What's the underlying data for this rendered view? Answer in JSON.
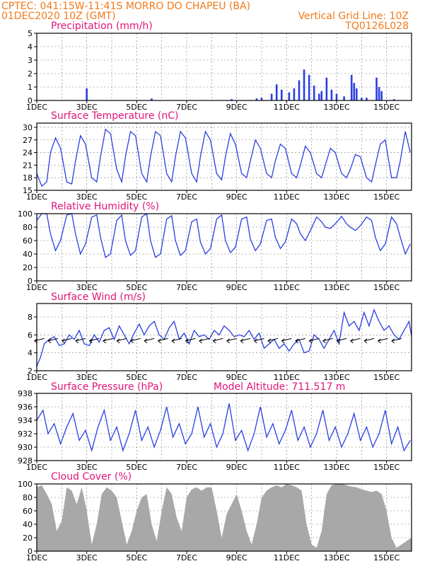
{
  "header": {
    "station": "CPTEC:  041:15W-11:41S  MORRO DO CHAPEU (BA)",
    "date": "01DEC2020 10Z (GMT)",
    "grid_note": "Vertical Grid Line: 10Z",
    "code": "TQ0126L028",
    "extra": "Model Altitude: 711.517 m"
  },
  "colors": {
    "header": "#f07a1a",
    "panel_title": "#e0147a",
    "line": "#2a3fe0",
    "bar": "#2a3fe0",
    "cloud": "#a8a8a8",
    "arrow": "#000000"
  },
  "chart_data": [
    {
      "type": "bar",
      "title": "Precipitation (mm/h)",
      "xticks": [
        "1DEC",
        "3DEC",
        "5DEC",
        "7DEC",
        "9DEC",
        "11DEC",
        "13DEC",
        "15DEC"
      ],
      "yticks": [
        0,
        1,
        2,
        3,
        4,
        5
      ],
      "ylim": [
        0,
        5
      ],
      "xlim": [
        0,
        15
      ],
      "grid": "dashed",
      "events": [
        {
          "x": 2.0,
          "y": 0.9
        },
        {
          "x": 4.6,
          "y": 0.15
        },
        {
          "x": 7.8,
          "y": 0.1
        },
        {
          "x": 8.8,
          "y": 0.15
        },
        {
          "x": 9.0,
          "y": 0.2
        },
        {
          "x": 9.4,
          "y": 0.5
        },
        {
          "x": 9.6,
          "y": 1.2
        },
        {
          "x": 9.8,
          "y": 0.8
        },
        {
          "x": 10.1,
          "y": 0.6
        },
        {
          "x": 10.3,
          "y": 0.9
        },
        {
          "x": 10.5,
          "y": 1.5
        },
        {
          "x": 10.7,
          "y": 2.3
        },
        {
          "x": 10.9,
          "y": 1.9
        },
        {
          "x": 11.1,
          "y": 1.1
        },
        {
          "x": 11.3,
          "y": 0.5
        },
        {
          "x": 11.4,
          "y": 0.7
        },
        {
          "x": 11.6,
          "y": 1.7
        },
        {
          "x": 11.8,
          "y": 0.8
        },
        {
          "x": 12.0,
          "y": 0.5
        },
        {
          "x": 12.3,
          "y": 0.3
        },
        {
          "x": 12.6,
          "y": 1.9
        },
        {
          "x": 12.7,
          "y": 1.3
        },
        {
          "x": 12.8,
          "y": 0.9
        },
        {
          "x": 13.0,
          "y": 0.2
        },
        {
          "x": 13.2,
          "y": 0.2
        },
        {
          "x": 13.6,
          "y": 1.7
        },
        {
          "x": 13.7,
          "y": 1.0
        },
        {
          "x": 13.8,
          "y": 0.7
        },
        {
          "x": 14.3,
          "y": 0.1
        }
      ]
    },
    {
      "type": "line",
      "title": "Surface Temperature (nC)",
      "xticks": [
        "1DEC",
        "3DEC",
        "5DEC",
        "7DEC",
        "9DEC",
        "11DEC",
        "13DEC",
        "15DEC"
      ],
      "yticks": [
        15,
        18,
        21,
        24,
        27,
        30
      ],
      "ylim": [
        15,
        31
      ],
      "xlim": [
        0,
        15
      ],
      "x": [
        0,
        0.2,
        0.4,
        0.55,
        0.75,
        0.95,
        1.2,
        1.4,
        1.55,
        1.75,
        1.95,
        2.2,
        2.4,
        2.55,
        2.75,
        2.95,
        3.2,
        3.4,
        3.55,
        3.75,
        3.95,
        4.2,
        4.4,
        4.55,
        4.75,
        4.95,
        5.2,
        5.4,
        5.55,
        5.75,
        5.95,
        6.2,
        6.4,
        6.55,
        6.75,
        6.95,
        7.2,
        7.4,
        7.55,
        7.75,
        7.95,
        8.2,
        8.4,
        8.55,
        8.75,
        8.95,
        9.2,
        9.4,
        9.55,
        9.75,
        9.95,
        10.2,
        10.4,
        10.55,
        10.75,
        10.95,
        11.2,
        11.4,
        11.55,
        11.75,
        11.95,
        12.2,
        12.4,
        12.55,
        12.75,
        12.95,
        13.2,
        13.4,
        13.55,
        13.75,
        13.95,
        14.2,
        14.4,
        14.55,
        14.75,
        14.95
      ],
      "values": [
        19,
        16,
        17,
        24,
        27.5,
        25,
        17,
        16.5,
        22,
        28,
        26,
        18,
        17,
        23,
        29.5,
        28.5,
        20,
        17,
        23,
        29,
        28,
        19,
        17,
        23,
        29,
        28,
        19,
        17,
        23,
        29,
        27.5,
        19,
        17,
        23,
        29,
        27,
        19,
        17.5,
        23,
        28.5,
        26,
        19,
        18,
        22,
        27,
        25,
        19,
        18,
        22,
        26,
        25,
        19,
        18,
        21,
        25.5,
        24,
        19,
        18,
        21,
        25,
        24,
        19,
        18,
        20,
        23.5,
        23,
        18,
        17,
        21,
        26,
        27,
        18,
        18,
        22,
        29,
        24
      ]
    },
    {
      "type": "line",
      "title": "Relative Humidity (%)",
      "xticks": [
        "1DEC",
        "3DEC",
        "5DEC",
        "7DEC",
        "9DEC",
        "11DEC",
        "13DEC",
        "15DEC"
      ],
      "yticks": [
        0,
        20,
        40,
        60,
        80,
        100
      ],
      "ylim": [
        0,
        100
      ],
      "xlim": [
        0,
        15
      ],
      "x": [
        0,
        0.2,
        0.4,
        0.55,
        0.75,
        0.95,
        1.2,
        1.4,
        1.55,
        1.75,
        1.95,
        2.2,
        2.4,
        2.55,
        2.75,
        2.95,
        3.2,
        3.4,
        3.55,
        3.75,
        3.95,
        4.2,
        4.4,
        4.55,
        4.75,
        4.95,
        5.2,
        5.4,
        5.55,
        5.75,
        5.95,
        6.2,
        6.4,
        6.55,
        6.75,
        6.95,
        7.2,
        7.4,
        7.55,
        7.75,
        7.95,
        8.2,
        8.4,
        8.55,
        8.75,
        8.95,
        9.2,
        9.4,
        9.55,
        9.75,
        9.95,
        10.2,
        10.4,
        10.55,
        10.75,
        10.95,
        11.2,
        11.4,
        11.55,
        11.75,
        11.95,
        12.2,
        12.4,
        12.55,
        12.75,
        12.95,
        13.2,
        13.4,
        13.55,
        13.75,
        13.95,
        14.2,
        14.4,
        14.55,
        14.75,
        14.95
      ],
      "values": [
        90,
        100,
        100,
        70,
        45,
        60,
        98,
        100,
        70,
        40,
        55,
        95,
        98,
        65,
        35,
        40,
        90,
        98,
        60,
        38,
        45,
        95,
        100,
        60,
        35,
        40,
        92,
        97,
        60,
        38,
        45,
        88,
        92,
        58,
        40,
        48,
        92,
        98,
        60,
        42,
        50,
        92,
        95,
        62,
        45,
        55,
        90,
        92,
        65,
        48,
        58,
        92,
        85,
        70,
        60,
        75,
        95,
        88,
        80,
        78,
        85,
        96,
        85,
        80,
        75,
        82,
        95,
        90,
        65,
        45,
        55,
        95,
        85,
        65,
        40,
        55
      ]
    },
    {
      "type": "line",
      "title": "Surface Wind (m/s)",
      "xticks": [
        "1DEC",
        "3DEC",
        "5DEC",
        "7DEC",
        "9DEC",
        "11DEC",
        "13DEC",
        "15DEC"
      ],
      "yticks": [
        2,
        4,
        6,
        8
      ],
      "ylim": [
        2,
        9.5
      ],
      "xlim": [
        0,
        15
      ],
      "x": [
        0,
        0.15,
        0.3,
        0.5,
        0.7,
        0.9,
        1.1,
        1.3,
        1.5,
        1.7,
        1.9,
        2.1,
        2.3,
        2.5,
        2.7,
        2.9,
        3.1,
        3.3,
        3.5,
        3.7,
        3.9,
        4.1,
        4.3,
        4.5,
        4.7,
        4.9,
        5.1,
        5.3,
        5.5,
        5.7,
        5.9,
        6.1,
        6.3,
        6.5,
        6.7,
        6.9,
        7.1,
        7.3,
        7.5,
        7.7,
        7.9,
        8.1,
        8.3,
        8.5,
        8.7,
        8.9,
        9.1,
        9.3,
        9.5,
        9.7,
        9.9,
        10.1,
        10.3,
        10.5,
        10.7,
        10.9,
        11.1,
        11.3,
        11.5,
        11.7,
        11.9,
        12.1,
        12.3,
        12.5,
        12.7,
        12.9,
        13.1,
        13.3,
        13.5,
        13.7,
        13.9,
        14.1,
        14.3,
        14.5,
        14.7,
        14.9,
        15.0
      ],
      "values": [
        2.5,
        3.5,
        5.0,
        5.5,
        5.8,
        4.8,
        5.0,
        6.0,
        5.5,
        6.5,
        5.0,
        4.8,
        6.0,
        5.2,
        6.5,
        6.8,
        5.5,
        7.0,
        6.0,
        5.0,
        6.2,
        7.2,
        6.0,
        7.0,
        7.5,
        6.0,
        5.5,
        6.8,
        7.5,
        5.5,
        6.2,
        5.0,
        6.5,
        5.8,
        6.0,
        5.5,
        6.5,
        6.0,
        7.0,
        6.5,
        5.8,
        6.0,
        5.8,
        6.5,
        5.5,
        6.2,
        4.5,
        5.0,
        5.5,
        4.5,
        5.0,
        4.2,
        5.0,
        5.5,
        4.0,
        4.2,
        6.0,
        5.5,
        4.5,
        5.5,
        6.5,
        5.0,
        8.5,
        7.0,
        7.5,
        6.5,
        8.5,
        7.0,
        8.8,
        7.5,
        6.5,
        7.0,
        6.0,
        5.5,
        6.5,
        7.5,
        5.8
      ]
    },
    {
      "type": "line",
      "title": "Surface Pressure (hPa)",
      "xticks": [
        "1DEC",
        "3DEC",
        "5DEC",
        "7DEC",
        "9DEC",
        "11DEC",
        "13DEC",
        "15DEC"
      ],
      "yticks": [
        928,
        930,
        932,
        934,
        936,
        938
      ],
      "ylim": [
        928,
        938
      ],
      "xlim": [
        0,
        15
      ],
      "x": [
        0,
        0.25,
        0.45,
        0.7,
        0.95,
        1.2,
        1.45,
        1.7,
        1.95,
        2.2,
        2.45,
        2.7,
        2.95,
        3.2,
        3.45,
        3.7,
        3.95,
        4.2,
        4.45,
        4.7,
        4.95,
        5.2,
        5.45,
        5.7,
        5.95,
        6.2,
        6.45,
        6.7,
        6.95,
        7.2,
        7.45,
        7.7,
        7.95,
        8.2,
        8.45,
        8.7,
        8.95,
        9.2,
        9.45,
        9.7,
        9.95,
        10.2,
        10.45,
        10.7,
        10.95,
        11.2,
        11.45,
        11.7,
        11.95,
        12.2,
        12.45,
        12.7,
        12.95,
        13.2,
        13.45,
        13.7,
        13.95,
        14.2,
        14.45,
        14.7,
        14.95
      ],
      "values": [
        934,
        935.5,
        932,
        933.5,
        930.5,
        933,
        935,
        931,
        932.5,
        929.5,
        933,
        935.5,
        931,
        933,
        929.5,
        932,
        935.5,
        931,
        933,
        930,
        932.5,
        936,
        931.5,
        933.5,
        930.5,
        932,
        936,
        931.5,
        933.5,
        930,
        932,
        936.5,
        931,
        932.5,
        929.5,
        932,
        936,
        931.5,
        933.5,
        930.5,
        932.5,
        935.5,
        931,
        933,
        930,
        932,
        935.5,
        931,
        933,
        930,
        932,
        935,
        931,
        933,
        930,
        932,
        935.5,
        930.5,
        933,
        929.5,
        931
      ]
    },
    {
      "type": "area",
      "title": "Cloud Cover (%)",
      "xticks": [
        "1DEC",
        "3DEC",
        "5DEC",
        "7DEC",
        "9DEC",
        "11DEC",
        "13DEC",
        "15DEC"
      ],
      "yticks": [
        0,
        20,
        40,
        60,
        80,
        100
      ],
      "ylim": [
        0,
        100
      ],
      "xlim": [
        0,
        15
      ],
      "x": [
        0,
        0.2,
        0.4,
        0.6,
        0.8,
        1.0,
        1.2,
        1.4,
        1.6,
        1.8,
        2.0,
        2.2,
        2.4,
        2.6,
        2.8,
        3.0,
        3.2,
        3.4,
        3.6,
        3.8,
        4.0,
        4.2,
        4.4,
        4.6,
        4.8,
        5.0,
        5.2,
        5.4,
        5.6,
        5.8,
        6.0,
        6.2,
        6.4,
        6.6,
        6.8,
        7.0,
        7.2,
        7.4,
        7.6,
        7.8,
        8.0,
        8.2,
        8.4,
        8.6,
        8.8,
        9.0,
        9.2,
        9.4,
        9.6,
        9.8,
        10.0,
        10.2,
        10.4,
        10.6,
        10.8,
        11.0,
        11.2,
        11.4,
        11.6,
        11.8,
        12.0,
        12.2,
        12.4,
        12.6,
        12.8,
        13.0,
        13.2,
        13.4,
        13.6,
        13.8,
        14.0,
        14.2,
        14.4,
        14.6,
        14.8,
        15.0
      ],
      "values": [
        95,
        98,
        85,
        70,
        30,
        45,
        95,
        90,
        70,
        95,
        60,
        10,
        40,
        85,
        95,
        90,
        80,
        45,
        10,
        30,
        60,
        80,
        85,
        40,
        15,
        60,
        95,
        85,
        50,
        30,
        80,
        92,
        95,
        90,
        95,
        95,
        60,
        20,
        55,
        70,
        85,
        60,
        30,
        10,
        40,
        80,
        90,
        95,
        98,
        95,
        100,
        98,
        95,
        90,
        40,
        10,
        5,
        30,
        85,
        98,
        100,
        100,
        98,
        96,
        95,
        92,
        90,
        88,
        90,
        85,
        60,
        20,
        5,
        10,
        15,
        20
      ]
    }
  ]
}
